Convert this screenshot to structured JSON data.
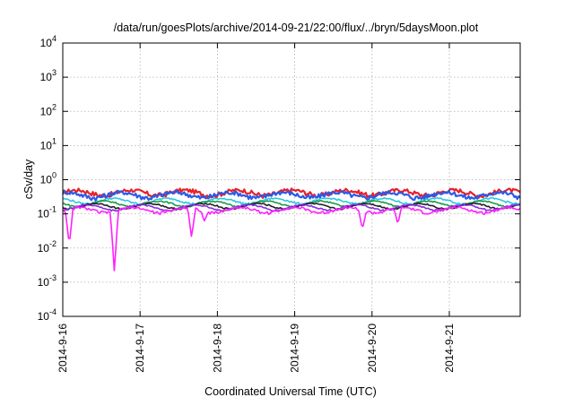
{
  "chart_data": {
    "type": "line",
    "title": "/data/run/goesPlots/archive/2014-09-21/22:00/flux/../bryn/5daysMoon.plot",
    "xlabel": "Coordinated Universal Time (UTC)",
    "ylabel": "cSv/day",
    "yscale": "log",
    "ylim": [
      0.0001,
      10000
    ],
    "y_ticks": [
      {
        "value": 0.0001,
        "base": "10",
        "exp": "-4"
      },
      {
        "value": 0.001,
        "base": "10",
        "exp": "-3"
      },
      {
        "value": 0.01,
        "base": "10",
        "exp": "-2"
      },
      {
        "value": 0.1,
        "base": "10",
        "exp": "-1"
      },
      {
        "value": 1,
        "base": "10",
        "exp": "0"
      },
      {
        "value": 10,
        "base": "10",
        "exp": "1"
      },
      {
        "value": 100,
        "base": "10",
        "exp": "2"
      },
      {
        "value": 1000,
        "base": "10",
        "exp": "3"
      },
      {
        "value": 10000,
        "base": "10",
        "exp": "4"
      }
    ],
    "xlim": [
      "2014-09-16T00:00",
      "2014-09-21T22:00"
    ],
    "x_tick_labels": [
      "2014-9-16",
      "2014-9-17",
      "2014-9-18",
      "2014-9-19",
      "2014-9-20",
      "2014-9-21"
    ],
    "grid": true,
    "legend": "none",
    "series": [
      {
        "color": "#e8202a",
        "level": 0.42,
        "noise": 0.3,
        "dips": []
      },
      {
        "color": "#2a5ae8",
        "level": 0.36,
        "noise": 0.3,
        "dips": []
      },
      {
        "color": "#2ac8e0",
        "level": 0.24,
        "noise": 0.12,
        "dips": []
      },
      {
        "color": "#1a9a4a",
        "level": 0.2,
        "noise": 0.1,
        "dips": []
      },
      {
        "color": "#202020",
        "level": 0.17,
        "noise": 0.1,
        "dips": []
      },
      {
        "color": "#8a2ae0",
        "level": 0.155,
        "noise": 0.1,
        "dips": []
      },
      {
        "color": "#ff20ff",
        "level": 0.13,
        "noise": 0.18,
        "dips": [
          {
            "t": "2014-09-16T02:00",
            "value": 0.012
          },
          {
            "t": "2014-09-16T16:00",
            "value": 0.002
          },
          {
            "t": "2014-09-17T16:00",
            "value": 0.02
          },
          {
            "t": "2014-09-17T20:00",
            "value": 0.06
          },
          {
            "t": "2014-09-19T21:00",
            "value": 0.035
          },
          {
            "t": "2014-09-20T08:00",
            "value": 0.05
          }
        ]
      }
    ]
  }
}
